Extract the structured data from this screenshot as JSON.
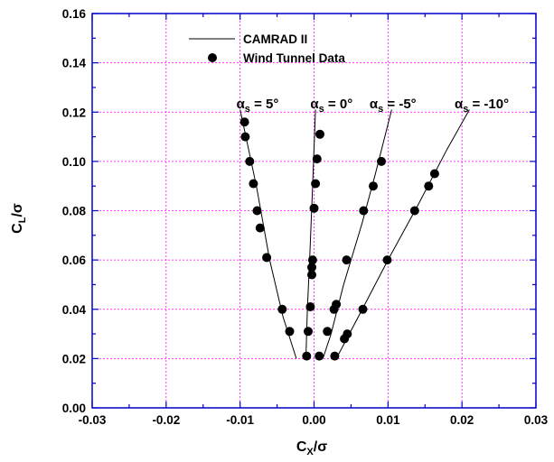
{
  "chart_data": {
    "type": "scatter",
    "xlabel": {
      "main": "C",
      "sub": "X",
      "suffix": "/σ"
    },
    "ylabel": {
      "main": "C",
      "sub": "L",
      "suffix": "/σ"
    },
    "xlim": [
      -0.03,
      0.03
    ],
    "ylim": [
      0,
      0.16
    ],
    "xticks": [
      -0.03,
      -0.02,
      -0.01,
      0.0,
      0.01,
      0.02,
      0.03
    ],
    "yticks": [
      0.0,
      0.02,
      0.04,
      0.06,
      0.08,
      0.1,
      0.12,
      0.14,
      0.16
    ],
    "xtick_labels": [
      "-0.03",
      "-0.02",
      "-0.01",
      "0.00",
      "0.01",
      "0.02",
      "0.03"
    ],
    "ytick_labels": [
      "0.00",
      "0.02",
      "0.04",
      "0.06",
      "0.08",
      "0.10",
      "0.12",
      "0.14",
      "0.16"
    ],
    "grid": true,
    "grid_color": "#ff00ff",
    "axis_color": "#0000cc",
    "legend": {
      "placement": "top-left",
      "entries": [
        {
          "label": "CAMRAD II",
          "marker": "line"
        },
        {
          "label": "Wind Tunnel Data",
          "marker": "dot"
        }
      ]
    },
    "annotations": [
      {
        "sym": "α",
        "sub": "s",
        "text": "= 5°",
        "x": -0.0105,
        "y": 0.1215
      },
      {
        "sym": "α",
        "sub": "s",
        "text": "= 0°",
        "x": -0.0005,
        "y": 0.1215
      },
      {
        "sym": "α",
        "sub": "s",
        "text": "= -5°",
        "x": 0.0075,
        "y": 0.1215
      },
      {
        "sym": "α",
        "sub": "s",
        "text": "= -10°",
        "x": 0.019,
        "y": 0.1215
      }
    ],
    "series": [
      {
        "name": "α_s = 5°",
        "line": [
          [
            -0.01,
            0.121
          ],
          [
            -0.0078,
            0.09
          ],
          [
            -0.006,
            0.06
          ],
          [
            -0.0042,
            0.037
          ],
          [
            -0.0024,
            0.02
          ]
        ],
        "points": [
          [
            -0.0094,
            0.116
          ],
          [
            -0.0093,
            0.11
          ],
          [
            -0.0087,
            0.1
          ],
          [
            -0.0082,
            0.091
          ],
          [
            -0.0077,
            0.08
          ],
          [
            -0.0073,
            0.073
          ],
          [
            -0.0064,
            0.061
          ],
          [
            -0.0043,
            0.04
          ],
          [
            -0.0033,
            0.031
          ]
        ]
      },
      {
        "name": "α_s = 0°",
        "line": [
          [
            0.0002,
            0.121
          ],
          [
            -0.0002,
            0.09
          ],
          [
            -0.0006,
            0.06
          ],
          [
            -0.0009,
            0.04
          ],
          [
            -0.0011,
            0.02
          ]
        ],
        "points": [
          [
            0.0008,
            0.111
          ],
          [
            0.0004,
            0.101
          ],
          [
            0.0002,
            0.091
          ],
          [
            0.0,
            0.081
          ],
          [
            -0.0002,
            0.06
          ],
          [
            -0.0003,
            0.057
          ],
          [
            -0.0003,
            0.054
          ],
          [
            -0.0005,
            0.041
          ],
          [
            -0.0008,
            0.031
          ],
          [
            -0.001,
            0.021
          ]
        ]
      },
      {
        "name": "α_s = -5°",
        "line": [
          [
            0.0105,
            0.121
          ],
          [
            0.0083,
            0.095
          ],
          [
            0.0065,
            0.075
          ],
          [
            0.004,
            0.05
          ],
          [
            0.0023,
            0.03
          ],
          [
            0.0012,
            0.02
          ]
        ],
        "points": [
          [
            0.0091,
            0.1
          ],
          [
            0.008,
            0.09
          ],
          [
            0.0067,
            0.08
          ],
          [
            0.0044,
            0.06
          ],
          [
            0.003,
            0.042
          ],
          [
            0.0027,
            0.04
          ],
          [
            0.0018,
            0.031
          ],
          [
            0.0007,
            0.021
          ]
        ]
      },
      {
        "name": "α_s = -10°",
        "line": [
          [
            0.021,
            0.121
          ],
          [
            0.018,
            0.105
          ],
          [
            0.014,
            0.082
          ],
          [
            0.01,
            0.06
          ],
          [
            0.006,
            0.037
          ],
          [
            0.003,
            0.02
          ]
        ],
        "points": [
          [
            0.0163,
            0.095
          ],
          [
            0.0155,
            0.09
          ],
          [
            0.0136,
            0.08
          ],
          [
            0.0099,
            0.06
          ],
          [
            0.0066,
            0.04
          ],
          [
            0.0045,
            0.03
          ],
          [
            0.0041,
            0.028
          ],
          [
            0.0028,
            0.021
          ]
        ]
      }
    ]
  }
}
